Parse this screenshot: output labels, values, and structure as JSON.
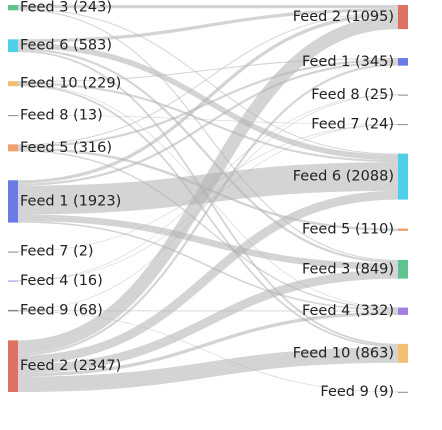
{
  "chart_data": {
    "type": "sankey",
    "sources": [
      {
        "label": "Feed 3 (243)",
        "value": 243,
        "color": "#5cc48c"
      },
      {
        "label": "Feed 6 (583)",
        "value": 583,
        "color": "#50cfe8"
      },
      {
        "label": "Feed 10 (229)",
        "value": 229,
        "color": "#f2c070"
      },
      {
        "label": "Feed 8 (13)",
        "value": 13,
        "color": "#888888"
      },
      {
        "label": "Feed 5 (316)",
        "value": 316,
        "color": "#f0a070"
      },
      {
        "label": "Feed 1 (1923)",
        "value": 1923,
        "color": "#6a7be8"
      },
      {
        "label": "Feed 7 (2)",
        "value": 2,
        "color": "#888888"
      },
      {
        "label": "Feed 4 (16)",
        "value": 16,
        "color": "#a080e0"
      },
      {
        "label": "Feed 9 (68)",
        "value": 68,
        "color": "#888888"
      },
      {
        "label": "Feed 2 (2347)",
        "value": 2347,
        "color": "#e07060"
      }
    ],
    "targets": [
      {
        "label": "Feed 2 (1095)",
        "value": 1095,
        "color": "#e07060"
      },
      {
        "label": "Feed 1 (345)",
        "value": 345,
        "color": "#6a7be8"
      },
      {
        "label": "Feed 8 (25)",
        "value": 25,
        "color": "#888888"
      },
      {
        "label": "Feed 7 (24)",
        "value": 24,
        "color": "#888888"
      },
      {
        "label": "Feed 6 (2088)",
        "value": 2088,
        "color": "#50cfe8"
      },
      {
        "label": "Feed 5 (110)",
        "value": 110,
        "color": "#f0a070"
      },
      {
        "label": "Feed 3 (849)",
        "value": 849,
        "color": "#5cc48c"
      },
      {
        "label": "Feed 4 (332)",
        "value": 332,
        "color": "#a080e0"
      },
      {
        "label": "Feed 10 (863)",
        "value": 863,
        "color": "#f2c070"
      },
      {
        "label": "Feed 9 (9)",
        "value": 9,
        "color": "#888888"
      }
    ],
    "links": [
      {
        "source": 9,
        "target": 0,
        "value": 600
      },
      {
        "source": 9,
        "target": 4,
        "value": 400
      },
      {
        "source": 9,
        "target": 8,
        "value": 700
      },
      {
        "source": 9,
        "target": 6,
        "value": 400
      },
      {
        "source": 9,
        "target": 7,
        "value": 150
      },
      {
        "source": 9,
        "target": 1,
        "value": 97
      },
      {
        "source": 5,
        "target": 4,
        "value": 1300
      },
      {
        "source": 5,
        "target": 6,
        "value": 300
      },
      {
        "source": 5,
        "target": 0,
        "value": 150
      },
      {
        "source": 5,
        "target": 1,
        "value": 100
      },
      {
        "source": 5,
        "target": 7,
        "value": 73
      },
      {
        "source": 1,
        "target": 4,
        "value": 250
      },
      {
        "source": 1,
        "target": 0,
        "value": 150
      },
      {
        "source": 1,
        "target": 6,
        "value": 100
      },
      {
        "source": 1,
        "target": 8,
        "value": 83
      },
      {
        "source": 0,
        "target": 0,
        "value": 150
      },
      {
        "source": 0,
        "target": 6,
        "value": 49
      },
      {
        "source": 0,
        "target": 4,
        "value": 44
      },
      {
        "source": 4,
        "target": 5,
        "value": 110
      },
      {
        "source": 4,
        "target": 0,
        "value": 45
      },
      {
        "source": 4,
        "target": 1,
        "value": 100
      },
      {
        "source": 4,
        "target": 7,
        "value": 61
      },
      {
        "source": 2,
        "target": 8,
        "value": 80
      },
      {
        "source": 2,
        "target": 4,
        "value": 94
      },
      {
        "source": 2,
        "target": 1,
        "value": 48
      },
      {
        "source": 2,
        "target": 7,
        "value": 7
      },
      {
        "source": 8,
        "target": 7,
        "value": 41
      },
      {
        "source": 8,
        "target": 9,
        "value": 9
      },
      {
        "source": 8,
        "target": 2,
        "value": 18
      },
      {
        "source": 7,
        "target": 2,
        "value": 7
      },
      {
        "source": 7,
        "target": 3,
        "value": 9
      },
      {
        "source": 3,
        "target": 3,
        "value": 13
      },
      {
        "source": 6,
        "target": 3,
        "value": 2
      }
    ],
    "link_color": "#b0b0b0"
  }
}
